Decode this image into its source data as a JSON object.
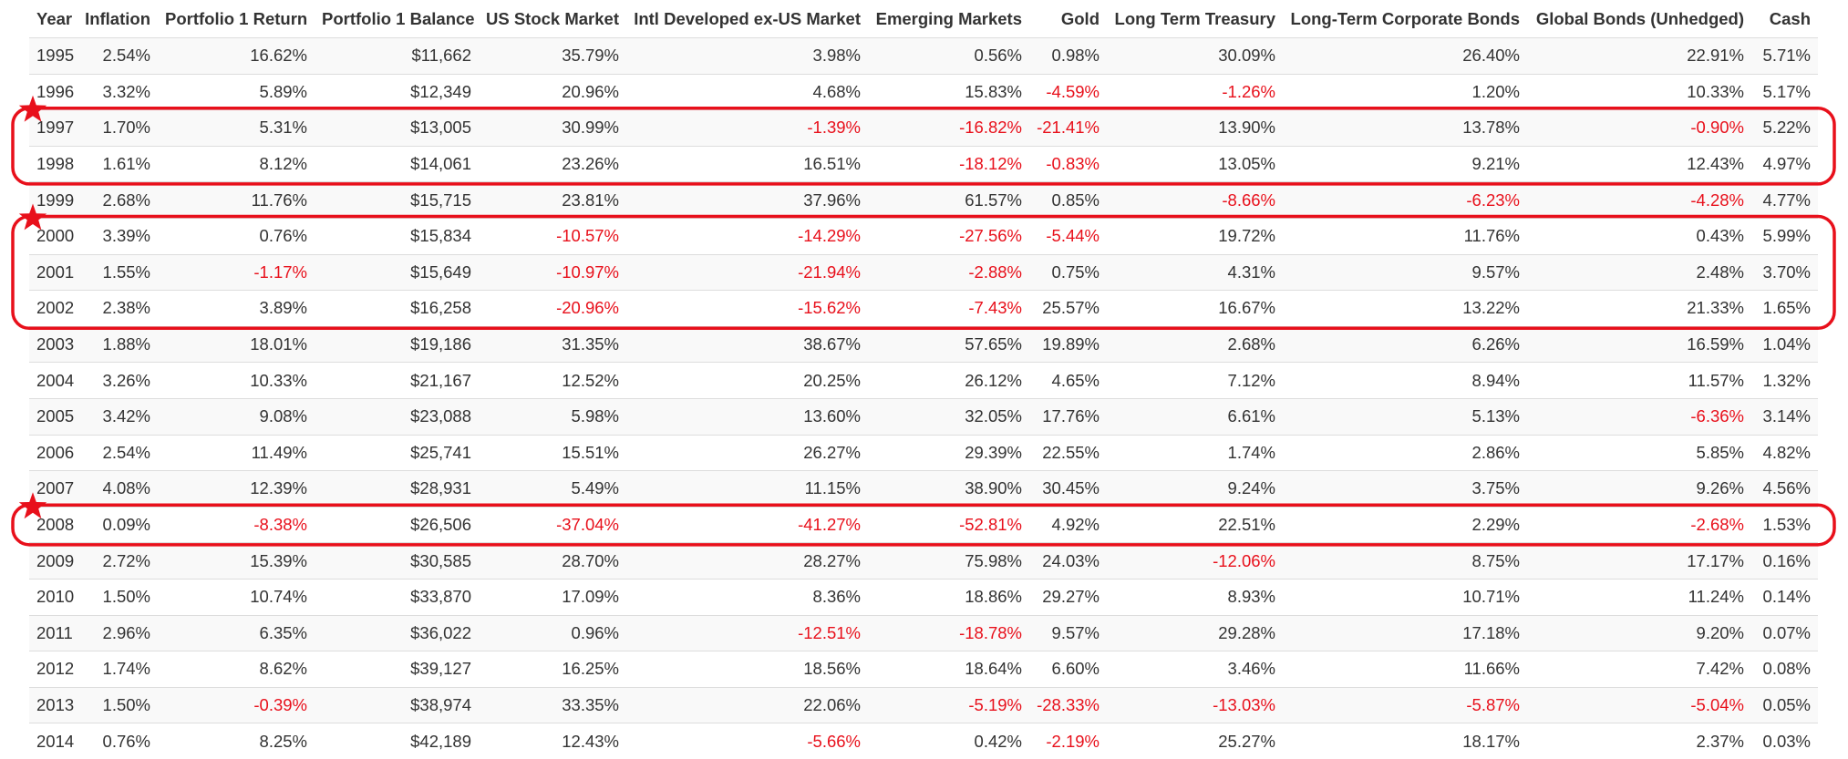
{
  "columns": [
    "Year",
    "Inflation",
    "Portfolio 1 Return",
    "Portfolio 1 Balance",
    "US Stock Market",
    "Intl Developed ex-US Market",
    "Emerging Markets",
    "Gold",
    "Long Term Treasury",
    "Long-Term Corporate Bonds",
    "Global Bonds (Unhedged)",
    "Cash"
  ],
  "rows": [
    [
      "1995",
      "2.54%",
      "16.62%",
      "$11,662",
      "35.79%",
      "3.98%",
      "0.56%",
      "0.98%",
      "30.09%",
      "26.40%",
      "22.91%",
      "5.71%"
    ],
    [
      "1996",
      "3.32%",
      "5.89%",
      "$12,349",
      "20.96%",
      "4.68%",
      "15.83%",
      "-4.59%",
      "-1.26%",
      "1.20%",
      "10.33%",
      "5.17%"
    ],
    [
      "1997",
      "1.70%",
      "5.31%",
      "$13,005",
      "30.99%",
      "-1.39%",
      "-16.82%",
      "-21.41%",
      "13.90%",
      "13.78%",
      "-0.90%",
      "5.22%"
    ],
    [
      "1998",
      "1.61%",
      "8.12%",
      "$14,061",
      "23.26%",
      "16.51%",
      "-18.12%",
      "-0.83%",
      "13.05%",
      "9.21%",
      "12.43%",
      "4.97%"
    ],
    [
      "1999",
      "2.68%",
      "11.76%",
      "$15,715",
      "23.81%",
      "37.96%",
      "61.57%",
      "0.85%",
      "-8.66%",
      "-6.23%",
      "-4.28%",
      "4.77%"
    ],
    [
      "2000",
      "3.39%",
      "0.76%",
      "$15,834",
      "-10.57%",
      "-14.29%",
      "-27.56%",
      "-5.44%",
      "19.72%",
      "11.76%",
      "0.43%",
      "5.99%"
    ],
    [
      "2001",
      "1.55%",
      "-1.17%",
      "$15,649",
      "-10.97%",
      "-21.94%",
      "-2.88%",
      "0.75%",
      "4.31%",
      "9.57%",
      "2.48%",
      "3.70%"
    ],
    [
      "2002",
      "2.38%",
      "3.89%",
      "$16,258",
      "-20.96%",
      "-15.62%",
      "-7.43%",
      "25.57%",
      "16.67%",
      "13.22%",
      "21.33%",
      "1.65%"
    ],
    [
      "2003",
      "1.88%",
      "18.01%",
      "$19,186",
      "31.35%",
      "38.67%",
      "57.65%",
      "19.89%",
      "2.68%",
      "6.26%",
      "16.59%",
      "1.04%"
    ],
    [
      "2004",
      "3.26%",
      "10.33%",
      "$21,167",
      "12.52%",
      "20.25%",
      "26.12%",
      "4.65%",
      "7.12%",
      "8.94%",
      "11.57%",
      "1.32%"
    ],
    [
      "2005",
      "3.42%",
      "9.08%",
      "$23,088",
      "5.98%",
      "13.60%",
      "32.05%",
      "17.76%",
      "6.61%",
      "5.13%",
      "-6.36%",
      "3.14%"
    ],
    [
      "2006",
      "2.54%",
      "11.49%",
      "$25,741",
      "15.51%",
      "26.27%",
      "29.39%",
      "22.55%",
      "1.74%",
      "2.86%",
      "5.85%",
      "4.82%"
    ],
    [
      "2007",
      "4.08%",
      "12.39%",
      "$28,931",
      "5.49%",
      "11.15%",
      "38.90%",
      "30.45%",
      "9.24%",
      "3.75%",
      "9.26%",
      "4.56%"
    ],
    [
      "2008",
      "0.09%",
      "-8.38%",
      "$26,506",
      "-37.04%",
      "-41.27%",
      "-52.81%",
      "4.92%",
      "22.51%",
      "2.29%",
      "-2.68%",
      "1.53%"
    ],
    [
      "2009",
      "2.72%",
      "15.39%",
      "$30,585",
      "28.70%",
      "28.27%",
      "75.98%",
      "24.03%",
      "-12.06%",
      "8.75%",
      "17.17%",
      "0.16%"
    ],
    [
      "2010",
      "1.50%",
      "10.74%",
      "$33,870",
      "17.09%",
      "8.36%",
      "18.86%",
      "29.27%",
      "8.93%",
      "10.71%",
      "11.24%",
      "0.14%"
    ],
    [
      "2011",
      "2.96%",
      "6.35%",
      "$36,022",
      "0.96%",
      "-12.51%",
      "-18.78%",
      "9.57%",
      "29.28%",
      "17.18%",
      "9.20%",
      "0.07%"
    ],
    [
      "2012",
      "1.74%",
      "8.62%",
      "$39,127",
      "16.25%",
      "18.56%",
      "18.64%",
      "6.60%",
      "3.46%",
      "11.66%",
      "7.42%",
      "0.08%"
    ],
    [
      "2013",
      "1.50%",
      "-0.39%",
      "$38,974",
      "33.35%",
      "22.06%",
      "-5.19%",
      "-28.33%",
      "-13.03%",
      "-5.87%",
      "-5.04%",
      "0.05%"
    ],
    [
      "2014",
      "0.76%",
      "8.25%",
      "$42,189",
      "12.43%",
      "-5.66%",
      "0.42%",
      "-2.19%",
      "25.27%",
      "18.17%",
      "2.37%",
      "0.03%"
    ]
  ],
  "highlights": [
    {
      "first_year": "1997",
      "last_year": "1998",
      "marker": "star"
    },
    {
      "first_year": "2000",
      "last_year": "2002",
      "marker": "star"
    },
    {
      "first_year": "2008",
      "last_year": "2008",
      "marker": "star"
    }
  ],
  "colors": {
    "negative": "#e8101b",
    "highlight": "#e8101b",
    "text": "#333333",
    "stripe": "#f9f9f9",
    "rule": "#dddddd"
  }
}
